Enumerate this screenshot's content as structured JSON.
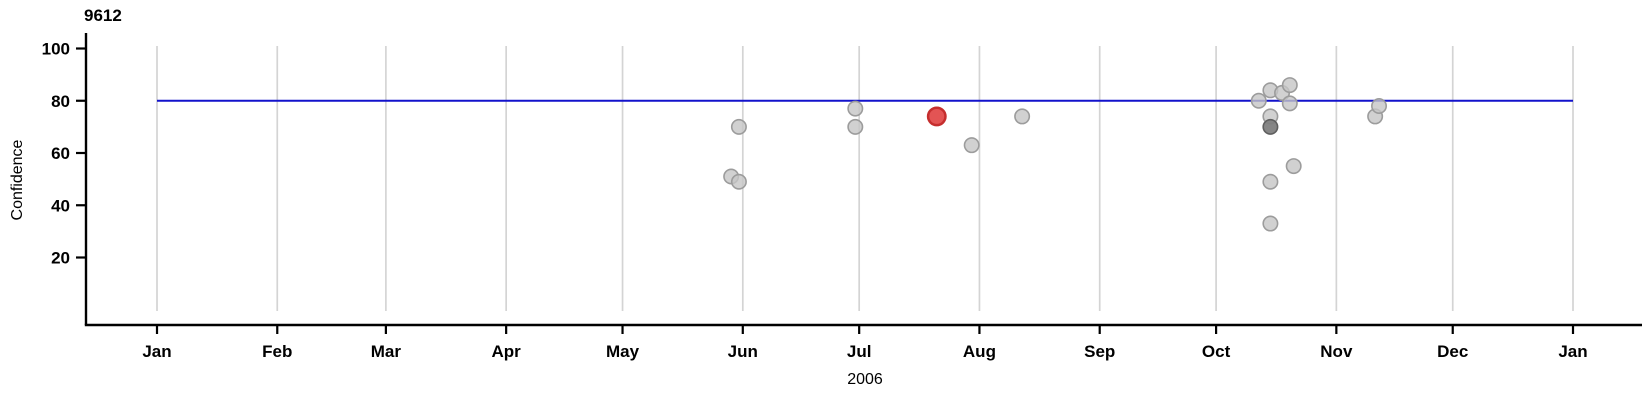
{
  "chart_data": {
    "type": "scatter",
    "title": "9612",
    "ylabel": "Confidence",
    "xlabel": "2006",
    "grid": true,
    "legend": false,
    "x_axis": {
      "month_ticks": [
        {
          "label": "Jan",
          "day": 0
        },
        {
          "label": "Feb",
          "day": 31
        },
        {
          "label": "Mar",
          "day": 59
        },
        {
          "label": "Apr",
          "day": 90
        },
        {
          "label": "May",
          "day": 120
        },
        {
          "label": "Jun",
          "day": 151
        },
        {
          "label": "Jul",
          "day": 181
        },
        {
          "label": "Aug",
          "day": 212
        },
        {
          "label": "Sep",
          "day": 243
        },
        {
          "label": "Oct",
          "day": 273
        },
        {
          "label": "Nov",
          "day": 304
        },
        {
          "label": "Dec",
          "day": 334
        },
        {
          "label": "Jan",
          "day": 365
        }
      ]
    },
    "y_axis": {
      "ticks": [
        20,
        40,
        60,
        80,
        100
      ],
      "range": [
        0,
        101
      ]
    },
    "reference_line": {
      "value": 80,
      "color": "#1212cc"
    },
    "colors": {
      "grid": "#d4d4d4",
      "axis": "#000000"
    },
    "point_styles": {
      "normal": {
        "fill": "#c6c6c6",
        "stroke": "#9c9c9c",
        "radius": 7.2,
        "opacity": 0.8
      },
      "dark": {
        "fill": "#808080",
        "stroke": "#5f5f5f",
        "radius": 7.2,
        "opacity": 0.95
      },
      "highlight": {
        "fill": "#e14b4b",
        "stroke": "#c52e2e",
        "radius": 8.7,
        "opacity": 0.95
      }
    },
    "points": [
      {
        "date": "2006-05-29",
        "day": 148,
        "value": 51,
        "style": "normal"
      },
      {
        "date": "2006-05-31",
        "day": 150,
        "value": 70,
        "style": "normal"
      },
      {
        "date": "2006-05-31",
        "day": 150,
        "value": 49,
        "style": "normal"
      },
      {
        "date": "2006-06-30",
        "day": 180,
        "value": 77,
        "style": "normal"
      },
      {
        "date": "2006-06-30",
        "day": 180,
        "value": 70,
        "style": "normal"
      },
      {
        "date": "2006-07-21",
        "day": 201,
        "value": 74,
        "style": "highlight"
      },
      {
        "date": "2006-07-30",
        "day": 210,
        "value": 63,
        "style": "normal"
      },
      {
        "date": "2006-08-12",
        "day": 223,
        "value": 74,
        "style": "normal"
      },
      {
        "date": "2006-10-12",
        "day": 284,
        "value": 80,
        "style": "normal"
      },
      {
        "date": "2006-10-15",
        "day": 287,
        "value": 84,
        "style": "normal"
      },
      {
        "date": "2006-10-15",
        "day": 287,
        "value": 74,
        "style": "normal"
      },
      {
        "date": "2006-10-15",
        "day": 287,
        "value": 70,
        "style": "dark"
      },
      {
        "date": "2006-10-15",
        "day": 287,
        "value": 49,
        "style": "normal"
      },
      {
        "date": "2006-10-15",
        "day": 287,
        "value": 33,
        "style": "normal"
      },
      {
        "date": "2006-10-18",
        "day": 290,
        "value": 83,
        "style": "normal"
      },
      {
        "date": "2006-10-20",
        "day": 292,
        "value": 86,
        "style": "normal"
      },
      {
        "date": "2006-10-20",
        "day": 292,
        "value": 79,
        "style": "normal"
      },
      {
        "date": "2006-10-21",
        "day": 293,
        "value": 55,
        "style": "normal"
      },
      {
        "date": "2006-11-11",
        "day": 314,
        "value": 74,
        "style": "normal"
      },
      {
        "date": "2006-11-12",
        "day": 315,
        "value": 78,
        "style": "normal"
      }
    ]
  }
}
